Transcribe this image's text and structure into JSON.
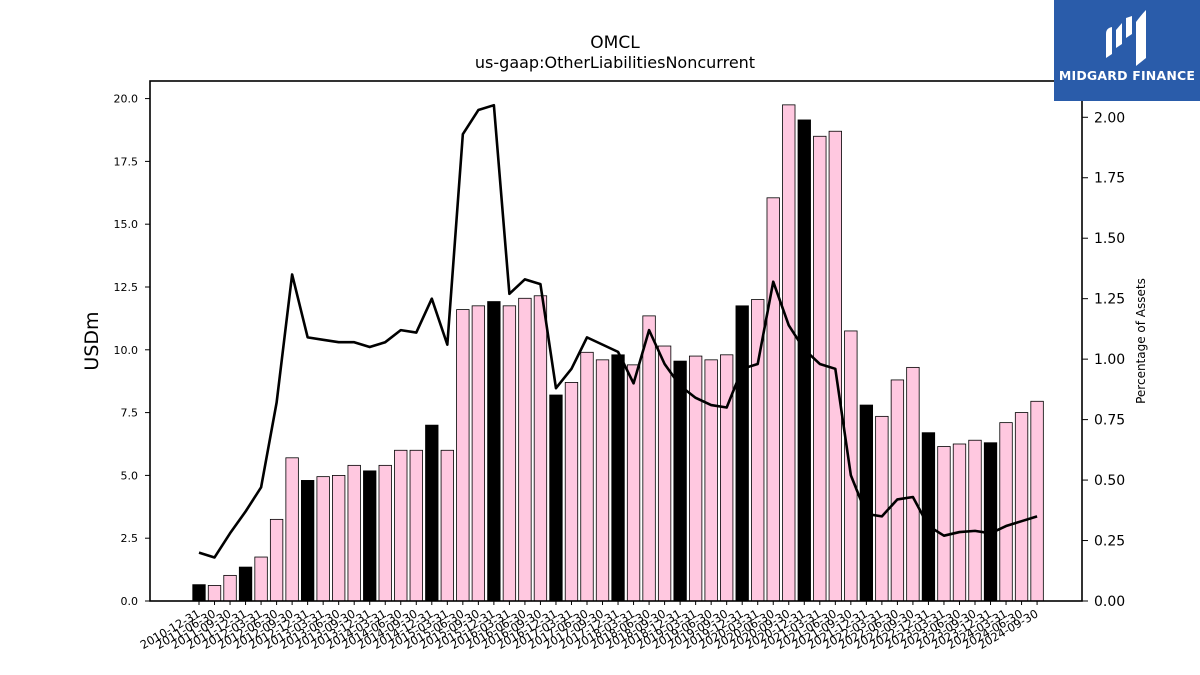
{
  "chart_data": {
    "type": "bar",
    "title": "OMCL",
    "subtitle": "us-gaap:OtherLiabilitiesNoncurrent",
    "ylabel": "USDm",
    "y2label": "Percentage of Assets",
    "ylim": [
      0,
      20.7
    ],
    "y2lim": [
      0,
      2.15
    ],
    "yticks": [
      "0.0",
      "2.5",
      "5.0",
      "7.5",
      "10.0",
      "12.5",
      "15.0",
      "17.5",
      "20.0"
    ],
    "y2ticks": [
      "0.00",
      "0.25",
      "0.50",
      "0.75",
      "1.00",
      "1.25",
      "1.50",
      "1.75",
      "2.00"
    ],
    "categories": [
      "2010-12-31",
      "2011-06-30",
      "2011-09-30",
      "2011-12-31",
      "2012-03-31",
      "2012-06-30",
      "2012-09-30",
      "2012-12-31",
      "2013-03-31",
      "2013-06-30",
      "2013-09-30",
      "2013-12-31",
      "2014-03-31",
      "2014-06-30",
      "2014-09-30",
      "2014-12-31",
      "2015-03-31",
      "2015-06-30",
      "2015-09-30",
      "2015-12-31",
      "2016-03-31",
      "2016-06-30",
      "2016-09-30",
      "2016-12-31",
      "2017-03-31",
      "2017-06-30",
      "2017-09-30",
      "2017-12-31",
      "2018-03-31",
      "2018-06-30",
      "2018-09-30",
      "2018-12-31",
      "2019-03-31",
      "2019-06-30",
      "2019-09-30",
      "2019-12-31",
      "2020-03-31",
      "2020-06-30",
      "2020-09-30",
      "2020-12-31",
      "2021-03-31",
      "2021-06-30",
      "2021-09-30",
      "2021-12-31",
      "2022-03-31",
      "2022-06-30",
      "2022-09-30",
      "2022-12-31",
      "2023-03-31",
      "2023-06-30",
      "2023-09-30",
      "2023-12-31",
      "2024-03-31",
      "2024-06-30",
      "2024-09-30"
    ],
    "series": [
      {
        "name": "USDm",
        "kind": "bar",
        "values": [
          0.65,
          0.62,
          1.02,
          1.35,
          1.75,
          3.25,
          5.7,
          4.8,
          4.95,
          5.0,
          5.4,
          5.18,
          5.4,
          6.0,
          6.0,
          7.0,
          6.0,
          11.6,
          11.75,
          11.92,
          11.75,
          12.05,
          12.15,
          8.2,
          8.7,
          9.9,
          9.6,
          9.8,
          9.4,
          11.35,
          10.15,
          9.55,
          9.75,
          9.6,
          9.8,
          11.75,
          12.0,
          16.05,
          19.75,
          19.15,
          18.5,
          18.7,
          10.75,
          7.8,
          7.35,
          8.8,
          9.3,
          6.7,
          6.15,
          6.25,
          6.4,
          6.3,
          7.1,
          7.5,
          7.95
        ],
        "highlight": [
          true,
          false,
          false,
          true,
          false,
          false,
          false,
          true,
          false,
          false,
          false,
          true,
          false,
          false,
          false,
          true,
          false,
          false,
          false,
          true,
          false,
          false,
          false,
          true,
          false,
          false,
          false,
          true,
          false,
          false,
          false,
          true,
          false,
          false,
          false,
          true,
          false,
          false,
          false,
          true,
          false,
          false,
          false,
          true,
          false,
          false,
          false,
          true,
          false,
          false,
          false,
          true,
          false,
          false,
          false
        ]
      },
      {
        "name": "Percentage of Assets",
        "kind": "line",
        "axis": "right",
        "values": [
          0.2,
          0.18,
          0.28,
          0.37,
          0.47,
          0.82,
          1.35,
          1.09,
          1.08,
          1.07,
          1.07,
          1.05,
          1.07,
          1.12,
          1.11,
          1.25,
          1.06,
          1.93,
          2.03,
          2.05,
          1.27,
          1.33,
          1.31,
          0.88,
          0.96,
          1.09,
          1.06,
          1.03,
          0.9,
          1.12,
          0.98,
          0.89,
          0.84,
          0.81,
          0.8,
          0.96,
          0.98,
          1.32,
          1.14,
          1.04,
          0.98,
          0.96,
          0.52,
          0.36,
          0.35,
          0.42,
          0.43,
          0.31,
          0.27,
          0.285,
          0.29,
          0.28,
          0.31,
          0.33,
          0.35
        ]
      }
    ],
    "colors": {
      "bar_fill": "#ffc8e0",
      "highlight_fill": "#000000",
      "bar_edge": "#000000",
      "line": "#000000"
    },
    "grid": false
  },
  "logo": {
    "text": "MIDGARD FINANCE",
    "background": "#2a5caa"
  }
}
